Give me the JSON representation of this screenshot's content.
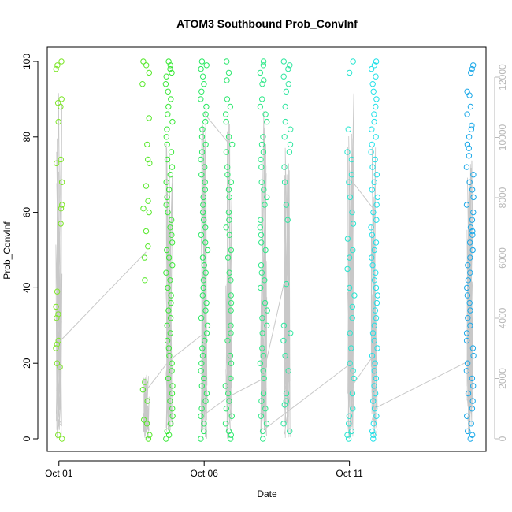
{
  "chart_data": {
    "type": "scatter",
    "title": "ATOM3 Southbound Prob_ConvInf",
    "xlabel": "Date",
    "ylabel": "Prob_ConvInf",
    "y_left_ticks": [
      0,
      20,
      40,
      60,
      80,
      100
    ],
    "y_left_range": [
      0,
      100
    ],
    "y_right_ticks": [
      0,
      2000,
      4000,
      6000,
      8000,
      10000,
      12000
    ],
    "y_right_range": [
      0,
      12500
    ],
    "x_ticks": [
      {
        "label": "Oct 01",
        "day": 1
      },
      {
        "label": "Oct 06",
        "day": 6
      },
      {
        "label": "Oct 11",
        "day": 11
      }
    ],
    "x_range_days": [
      0.6,
      15.7
    ],
    "point_symbol": "open-circle",
    "secondary_series_color": "#c8c8c8",
    "clusters": [
      {
        "day": 1.0,
        "color": "#7ee62a",
        "values": [
          100,
          99,
          98,
          90,
          89,
          88,
          84,
          74,
          73,
          68,
          62,
          61,
          57,
          39,
          35,
          33,
          32,
          26,
          25,
          24,
          20,
          19,
          1,
          0
        ]
      },
      {
        "day": 4.0,
        "color": "#56e82a",
        "values": [
          100,
          99,
          97,
          94,
          85,
          78,
          74,
          73,
          67,
          63,
          61,
          60,
          55,
          51,
          48,
          42,
          15,
          13,
          10,
          5,
          4,
          1,
          0
        ]
      },
      {
        "day": 4.8,
        "color": "#3ae838",
        "values": [
          100,
          99,
          98,
          97,
          96,
          94,
          92,
          90,
          88,
          86,
          84,
          82,
          80,
          78,
          76,
          74,
          72,
          70,
          68,
          66,
          64,
          62,
          60,
          58,
          56,
          54,
          52,
          50,
          48,
          46,
          44,
          42,
          40,
          38,
          36,
          34,
          32,
          30,
          28,
          26,
          24,
          22,
          20,
          18,
          16,
          14,
          12,
          10,
          8,
          6,
          4,
          2,
          1,
          0
        ]
      },
      {
        "day": 6.0,
        "color": "#26e860",
        "values": [
          100,
          99,
          98,
          96,
          94,
          92,
          90,
          88,
          86,
          84,
          82,
          80,
          78,
          76,
          74,
          72,
          70,
          68,
          66,
          64,
          62,
          60,
          58,
          56,
          54,
          52,
          50,
          48,
          46,
          44,
          42,
          40,
          38,
          36,
          34,
          32,
          30,
          28,
          26,
          24,
          22,
          20,
          18,
          16,
          14,
          12,
          10,
          8,
          6,
          4,
          2,
          0
        ]
      },
      {
        "day": 6.85,
        "color": "#2ee870",
        "values": [
          100,
          97,
          95,
          90,
          88,
          86,
          84,
          80,
          78,
          76,
          72,
          70,
          68,
          66,
          64,
          60,
          58,
          56,
          54,
          50,
          48,
          44,
          42,
          38,
          36,
          34,
          30,
          28,
          26,
          22,
          20,
          16,
          14,
          12,
          10,
          8,
          6,
          4,
          2,
          1,
          0
        ]
      },
      {
        "day": 8.05,
        "color": "#2ee888",
        "values": [
          100,
          99,
          97,
          95,
          94,
          90,
          88,
          86,
          84,
          80,
          78,
          76,
          74,
          72,
          68,
          66,
          64,
          62,
          58,
          56,
          54,
          52,
          50,
          46,
          44,
          42,
          40,
          36,
          34,
          32,
          30,
          28,
          24,
          22,
          20,
          18,
          16,
          12,
          10,
          8,
          6,
          4,
          2,
          0
        ]
      },
      {
        "day": 8.85,
        "color": "#30e6a0",
        "values": [
          100,
          99,
          98,
          96,
          94,
          92,
          88,
          84,
          82,
          80,
          78,
          76,
          72,
          68,
          62,
          58,
          41,
          30,
          28,
          26,
          22,
          18,
          12,
          10,
          9,
          4,
          2
        ]
      },
      {
        "day": 11.05,
        "color": "#28e6d0",
        "values": [
          100,
          97,
          82,
          76,
          74,
          70,
          68,
          64,
          60,
          57,
          53,
          50,
          48,
          45,
          40,
          38,
          35,
          32,
          28,
          24,
          20,
          18,
          16,
          12,
          8,
          6,
          4,
          2,
          1,
          0
        ]
      },
      {
        "day": 11.85,
        "color": "#20e0e8",
        "values": [
          100,
          99,
          98,
          96,
          94,
          92,
          90,
          88,
          86,
          84,
          82,
          80,
          78,
          76,
          74,
          72,
          70,
          68,
          66,
          64,
          62,
          60,
          58,
          56,
          54,
          52,
          50,
          48,
          46,
          44,
          42,
          40,
          38,
          36,
          34,
          32,
          30,
          28,
          26,
          24,
          22,
          20,
          18,
          16,
          14,
          12,
          10,
          8,
          6,
          4,
          2,
          1,
          0
        ]
      },
      {
        "day": 15.15,
        "color": "#1aa8e8",
        "values": [
          99,
          98,
          97,
          92,
          91,
          88,
          86,
          83,
          82,
          80,
          78,
          77,
          75,
          72,
          70,
          68,
          66,
          64,
          62,
          60,
          58,
          56,
          55,
          54,
          52,
          50,
          48,
          46,
          44,
          42,
          40,
          38,
          36,
          34,
          32,
          30,
          28,
          26,
          24,
          22,
          20,
          18,
          16,
          14,
          12,
          10,
          8,
          6,
          4,
          2,
          1,
          0
        ]
      }
    ],
    "secondary_series": {
      "name": "",
      "axis": "right",
      "bursts": [
        {
          "day": 1.0,
          "max": 12000,
          "min": 0
        },
        {
          "day": 4.0,
          "max": 2200,
          "min": 0
        },
        {
          "day": 4.8,
          "max": 10000,
          "min": 0
        },
        {
          "day": 6.0,
          "max": 11800,
          "min": 0
        },
        {
          "day": 6.85,
          "max": 10800,
          "min": 0
        },
        {
          "day": 8.05,
          "max": 11000,
          "min": 0
        },
        {
          "day": 8.85,
          "max": 9800,
          "min": 0
        },
        {
          "day": 11.05,
          "max": 11600,
          "min": 0
        },
        {
          "day": 11.85,
          "max": 9800,
          "min": 0
        },
        {
          "day": 15.15,
          "max": 9500,
          "min": 0
        }
      ],
      "connectors": [
        {
          "from_day": 1.0,
          "from": 3200,
          "to_day": 4.0,
          "to": 6200
        },
        {
          "from_day": 4.0,
          "from": 1600,
          "to_day": 4.8,
          "to": 2600
        },
        {
          "from_day": 4.8,
          "from": 2600,
          "to_day": 6.0,
          "to": 3500
        },
        {
          "from_day": 6.0,
          "from": 10800,
          "to_day": 6.85,
          "to": 9800
        },
        {
          "from_day": 6.0,
          "from": 800,
          "to_day": 6.85,
          "to": 1400
        },
        {
          "from_day": 6.85,
          "from": 1400,
          "to_day": 8.05,
          "to": 2000
        },
        {
          "from_day": 8.05,
          "from": 2200,
          "to_day": 8.85,
          "to": 5600
        },
        {
          "from_day": 8.05,
          "from": 300,
          "to_day": 11.05,
          "to": 2500
        },
        {
          "from_day": 11.05,
          "from": 8600,
          "to_day": 11.85,
          "to": 7600
        },
        {
          "from_day": 11.05,
          "from": 1700,
          "to_day": 11.85,
          "to": 2800
        },
        {
          "from_day": 11.85,
          "from": 1000,
          "to_day": 15.15,
          "to": 2600
        }
      ]
    }
  }
}
